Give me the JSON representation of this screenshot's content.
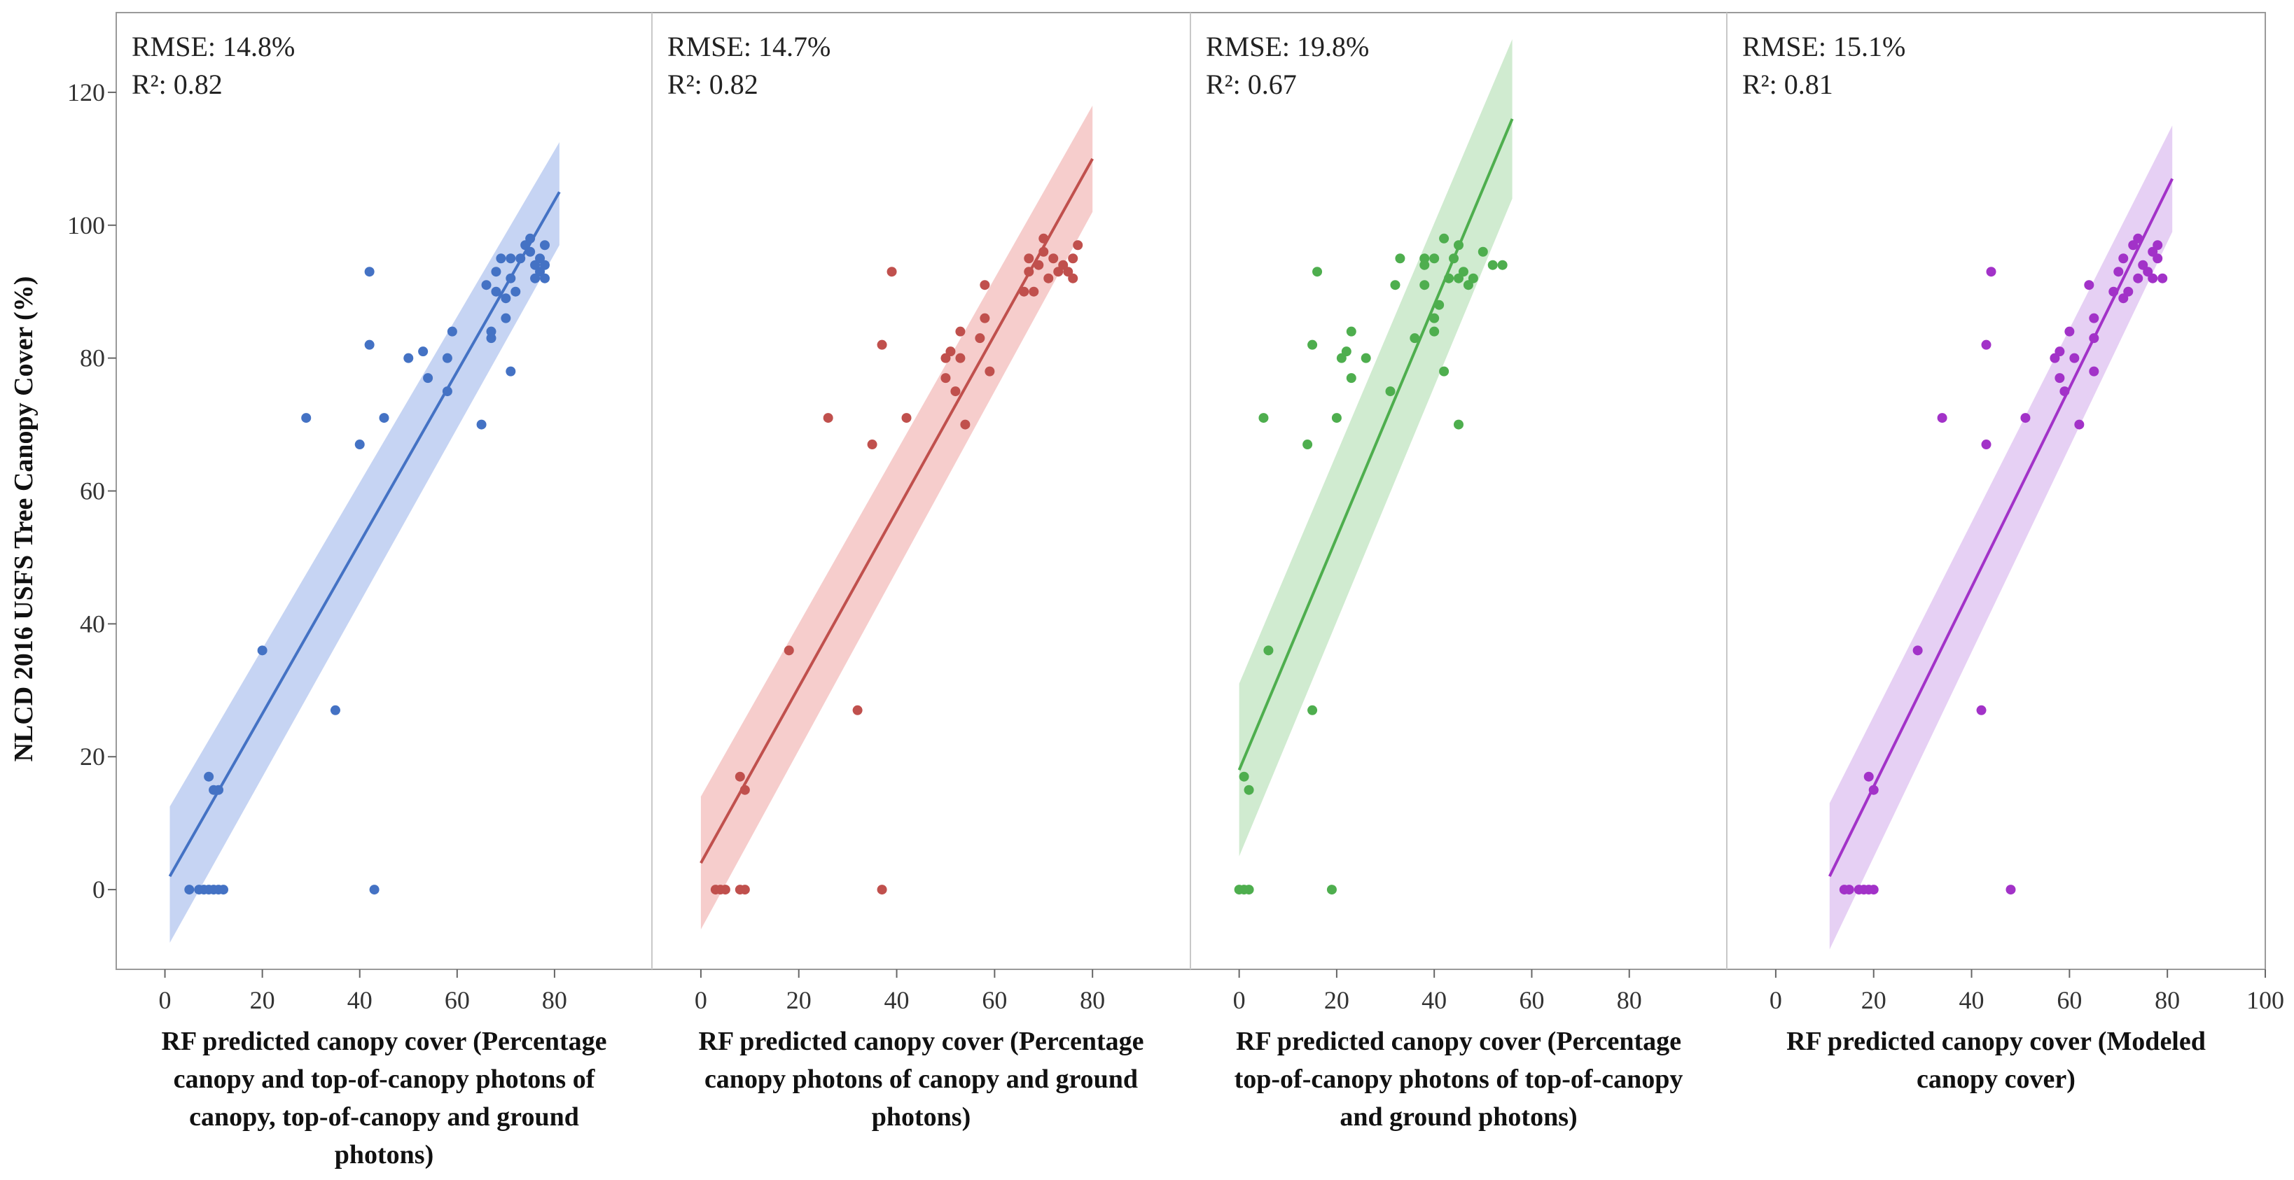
{
  "chart_data": {
    "type": "scatter",
    "ylabel": "NLCD 2016 USFS Tree Canopy Cover (%)",
    "y_ticks": [
      0,
      20,
      40,
      60,
      80,
      100,
      120
    ],
    "ylim": [
      -12,
      132
    ],
    "panels": [
      {
        "name": "Percentage canopy and top-of-canopy photons",
        "color": "#4472C4",
        "band_color": "#AEC2EE",
        "xlim": [
          -10,
          100
        ],
        "x_ticks": [
          0,
          20,
          40,
          60,
          80
        ],
        "rmse": "RMSE: 14.8%",
        "r2": "R²: 0.82",
        "xlabel_lines": [
          "RF predicted canopy cover (Percentage",
          "canopy and top-of-canopy photons of",
          "canopy, top-of-canopy and ground",
          "photons)"
        ],
        "fit": {
          "x0": 1,
          "y0": 2,
          "x1": 81,
          "y1": 105
        },
        "band": {
          "lower0": -8,
          "upper0": 12.5,
          "lower1": 97,
          "upper1": 112.5
        },
        "points": [
          [
            5,
            0
          ],
          [
            7,
            0
          ],
          [
            8,
            0
          ],
          [
            9,
            0
          ],
          [
            10,
            0
          ],
          [
            11,
            0
          ],
          [
            12,
            0
          ],
          [
            43,
            0
          ],
          [
            9,
            17
          ],
          [
            10,
            15
          ],
          [
            11,
            15
          ],
          [
            35,
            27
          ],
          [
            20,
            36
          ],
          [
            29,
            71
          ],
          [
            40,
            67
          ],
          [
            45,
            71
          ],
          [
            42,
            93
          ],
          [
            42,
            82
          ],
          [
            50,
            80
          ],
          [
            53,
            81
          ],
          [
            54,
            77
          ],
          [
            58,
            75
          ],
          [
            58,
            80
          ],
          [
            59,
            84
          ],
          [
            65,
            70
          ],
          [
            66,
            91
          ],
          [
            67,
            83
          ],
          [
            67,
            84
          ],
          [
            68,
            90
          ],
          [
            68,
            93
          ],
          [
            69,
            95
          ],
          [
            70,
            86
          ],
          [
            70,
            89
          ],
          [
            71,
            78
          ],
          [
            71,
            92
          ],
          [
            71,
            95
          ],
          [
            72,
            90
          ],
          [
            73,
            95
          ],
          [
            74,
            97
          ],
          [
            75,
            98
          ],
          [
            75,
            96
          ],
          [
            76,
            94
          ],
          [
            76,
            92
          ],
          [
            77,
            93
          ],
          [
            77,
            95
          ],
          [
            78,
            92
          ],
          [
            78,
            97
          ],
          [
            78,
            94
          ]
        ]
      },
      {
        "name": "Percentage canopy photons",
        "color": "#C0504D",
        "band_color": "#F2B8B7",
        "xlim": [
          -10,
          100
        ],
        "x_ticks": [
          0,
          20,
          40,
          60,
          80
        ],
        "rmse": "RMSE: 14.7%",
        "r2": "R²: 0.82",
        "xlabel_lines": [
          "RF predicted canopy cover (Percentage",
          "canopy photons of canopy and ground",
          "photons)"
        ],
        "fit": {
          "x0": 0,
          "y0": 4,
          "x1": 80,
          "y1": 110
        },
        "band": {
          "lower0": -6,
          "upper0": 14,
          "lower1": 102,
          "upper1": 118
        },
        "points": [
          [
            3,
            0
          ],
          [
            4,
            0
          ],
          [
            5,
            0
          ],
          [
            8,
            0
          ],
          [
            9,
            0
          ],
          [
            37,
            0
          ],
          [
            8,
            17
          ],
          [
            9,
            15
          ],
          [
            32,
            27
          ],
          [
            18,
            36
          ],
          [
            26,
            71
          ],
          [
            35,
            67
          ],
          [
            42,
            71
          ],
          [
            39,
            93
          ],
          [
            37,
            82
          ],
          [
            50,
            80
          ],
          [
            51,
            81
          ],
          [
            50,
            77
          ],
          [
            52,
            75
          ],
          [
            53,
            80
          ],
          [
            53,
            84
          ],
          [
            54,
            70
          ],
          [
            57,
            83
          ],
          [
            58,
            86
          ],
          [
            58,
            91
          ],
          [
            59,
            78
          ],
          [
            66,
            90
          ],
          [
            67,
            95
          ],
          [
            67,
            93
          ],
          [
            68,
            90
          ],
          [
            69,
            94
          ],
          [
            70,
            96
          ],
          [
            70,
            98
          ],
          [
            71,
            92
          ],
          [
            72,
            95
          ],
          [
            73,
            93
          ],
          [
            74,
            94
          ],
          [
            75,
            93
          ],
          [
            76,
            95
          ],
          [
            76,
            92
          ],
          [
            77,
            97
          ]
        ]
      },
      {
        "name": "Percentage top-of-canopy photons",
        "color": "#4EAE4E",
        "band_color": "#BCE3BC",
        "xlim": [
          -10,
          100
        ],
        "x_ticks": [
          0,
          20,
          40,
          60,
          80
        ],
        "rmse": "RMSE: 19.8%",
        "r2": "R²: 0.67",
        "xlabel_lines": [
          "RF predicted canopy cover (Percentage",
          "top-of-canopy photons of top-of-canopy",
          "and ground photons)"
        ],
        "fit": {
          "x0": 0,
          "y0": 18,
          "x1": 56,
          "y1": 116
        },
        "band": {
          "lower0": 5,
          "upper0": 31,
          "lower1": 104,
          "upper1": 128
        },
        "points": [
          [
            0,
            0
          ],
          [
            1,
            0
          ],
          [
            2,
            0
          ],
          [
            19,
            0
          ],
          [
            1,
            17
          ],
          [
            2,
            15
          ],
          [
            15,
            27
          ],
          [
            6,
            36
          ],
          [
            5,
            71
          ],
          [
            14,
            67
          ],
          [
            20,
            71
          ],
          [
            16,
            93
          ],
          [
            15,
            82
          ],
          [
            21,
            80
          ],
          [
            22,
            81
          ],
          [
            23,
            84
          ],
          [
            23,
            77
          ],
          [
            26,
            80
          ],
          [
            31,
            75
          ],
          [
            32,
            91
          ],
          [
            33,
            95
          ],
          [
            36,
            83
          ],
          [
            38,
            91
          ],
          [
            38,
            94
          ],
          [
            38,
            95
          ],
          [
            40,
            84
          ],
          [
            40,
            86
          ],
          [
            40,
            95
          ],
          [
            41,
            88
          ],
          [
            42,
            98
          ],
          [
            42,
            78
          ],
          [
            43,
            92
          ],
          [
            44,
            95
          ],
          [
            45,
            70
          ],
          [
            45,
            92
          ],
          [
            45,
            97
          ],
          [
            46,
            93
          ],
          [
            47,
            91
          ],
          [
            48,
            92
          ],
          [
            50,
            96
          ],
          [
            52,
            94
          ],
          [
            54,
            94
          ]
        ]
      },
      {
        "name": "Modeled canopy cover",
        "color": "#A232C8",
        "band_color": "#DCBCF0",
        "xlim": [
          -10,
          100
        ],
        "x_ticks": [
          0,
          20,
          40,
          60,
          80,
          100
        ],
        "rmse": "RMSE: 15.1%",
        "r2": "R²: 0.81",
        "xlabel_lines": [
          "RF predicted canopy cover (Modeled",
          "canopy cover)"
        ],
        "fit": {
          "x0": 11,
          "y0": 2,
          "x1": 81,
          "y1": 107
        },
        "band": {
          "lower0": -9,
          "upper0": 13,
          "lower1": 99,
          "upper1": 115
        },
        "points": [
          [
            14,
            0
          ],
          [
            15,
            0
          ],
          [
            17,
            0
          ],
          [
            18,
            0
          ],
          [
            19,
            0
          ],
          [
            20,
            0
          ],
          [
            48,
            0
          ],
          [
            19,
            17
          ],
          [
            20,
            15
          ],
          [
            42,
            27
          ],
          [
            29,
            36
          ],
          [
            34,
            71
          ],
          [
            43,
            67
          ],
          [
            51,
            71
          ],
          [
            44,
            93
          ],
          [
            43,
            82
          ],
          [
            57,
            80
          ],
          [
            58,
            81
          ],
          [
            58,
            77
          ],
          [
            59,
            75
          ],
          [
            60,
            84
          ],
          [
            61,
            80
          ],
          [
            62,
            70
          ],
          [
            64,
            91
          ],
          [
            65,
            83
          ],
          [
            65,
            78
          ],
          [
            65,
            86
          ],
          [
            69,
            90
          ],
          [
            70,
            93
          ],
          [
            71,
            95
          ],
          [
            71,
            89
          ],
          [
            72,
            90
          ],
          [
            73,
            97
          ],
          [
            74,
            98
          ],
          [
            74,
            92
          ],
          [
            75,
            94
          ],
          [
            76,
            93
          ],
          [
            77,
            96
          ],
          [
            77,
            92
          ],
          [
            78,
            95
          ],
          [
            78,
            97
          ],
          [
            79,
            92
          ]
        ]
      }
    ]
  }
}
